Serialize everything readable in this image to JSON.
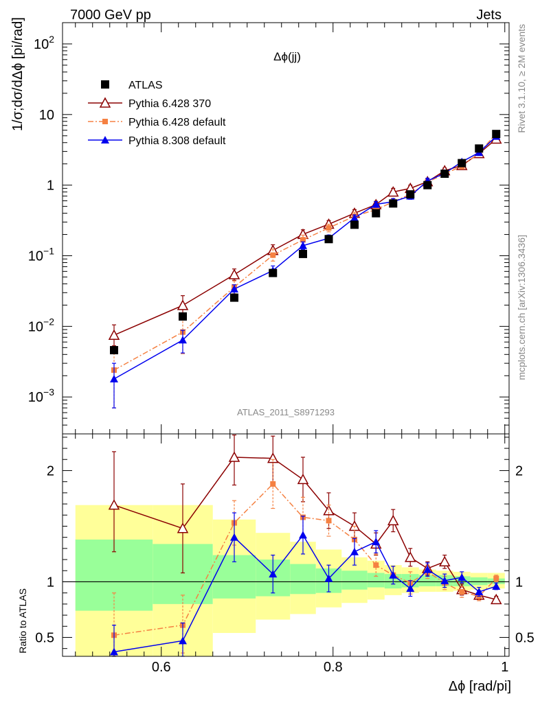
{
  "header": {
    "energy_label": "7000 GeV pp",
    "category_label": "Jets"
  },
  "side_labels": {
    "rivet": "Rivet 3.1.10, ≥ 2M events",
    "mcplots": "mcplots.cern.ch [arXiv:1306.3436]"
  },
  "analysis_id": "ATLAS_2011_S8971293",
  "chart_data": [
    {
      "type": "line",
      "panel": "main",
      "title": "Δϕ(jj)",
      "ylabel": "1/σ;dσ/dΔϕ [pi/rad]",
      "xlabel": "",
      "xlim": [
        0.485,
        1.005
      ],
      "ylim": [
        0.0003,
        200
      ],
      "yscale": "log",
      "yticks": [
        0.001,
        0.01,
        0.1,
        1,
        10,
        100
      ],
      "yticklabels": [
        "10⁻³",
        "10⁻²",
        "10⁻¹",
        "1",
        "10",
        "10²"
      ],
      "legend_position": "top-left",
      "x": [
        0.545,
        0.625,
        0.685,
        0.73,
        0.765,
        0.795,
        0.825,
        0.85,
        0.87,
        0.89,
        0.91,
        0.93,
        0.95,
        0.97,
        0.99
      ],
      "series": [
        {
          "name": "ATLAS",
          "style": "data",
          "color": "#000000",
          "values": [
            0.0046,
            0.0138,
            0.0255,
            0.057,
            0.106,
            0.172,
            0.275,
            0.4,
            0.55,
            0.74,
            1.0,
            1.45,
            2.05,
            3.3,
            5.3
          ]
        },
        {
          "name": "Pythia 6.428 370",
          "style": "open-triangle-solid",
          "color": "#8b0000",
          "values": [
            0.0075,
            0.0198,
            0.054,
            0.119,
            0.201,
            0.28,
            0.4,
            0.53,
            0.8,
            0.9,
            1.12,
            1.6,
            1.9,
            2.8,
            4.5
          ],
          "err_low": [
            0.0022,
            0.0054,
            0.009,
            0.02,
            0.028,
            0.03,
            0.04,
            0.05,
            0.08,
            0.09,
            0.1,
            0.15,
            0.15,
            0.2,
            0.3
          ],
          "err_high": [
            0.003,
            0.0074,
            0.011,
            0.024,
            0.032,
            0.035,
            0.05,
            0.06,
            0.1,
            0.1,
            0.12,
            0.15,
            0.15,
            0.2,
            0.3
          ]
        },
        {
          "name": "Pythia 6.428 default",
          "style": "square-dashdot",
          "color": "#f58142",
          "values": [
            0.0024,
            0.0083,
            0.036,
            0.102,
            0.168,
            0.248,
            0.363,
            0.45,
            0.578,
            0.742,
            1.1,
            1.45,
            1.85,
            2.83,
            5.4
          ],
          "err_low": [
            0.0017,
            0.0042,
            0.007,
            0.018,
            0.025,
            0.03,
            0.045,
            0.05,
            0.06,
            0.08,
            0.1,
            0.12,
            0.15,
            0.2,
            0.3
          ],
          "err_high": [
            0.0023,
            0.005,
            0.008,
            0.022,
            0.028,
            0.032,
            0.05,
            0.06,
            0.07,
            0.08,
            0.1,
            0.12,
            0.15,
            0.2,
            0.3
          ]
        },
        {
          "name": "Pythia 8.308 default",
          "style": "triangle-solid",
          "color": "#0000ee",
          "values": [
            0.0018,
            0.0064,
            0.0338,
            0.0617,
            0.139,
            0.177,
            0.343,
            0.535,
            0.583,
            0.7,
            1.15,
            1.47,
            2.14,
            2.9,
            4.9
          ],
          "err_low": [
            0.0011,
            0.0022,
            0.005,
            0.009,
            0.016,
            0.02,
            0.035,
            0.05,
            0.06,
            0.07,
            0.1,
            0.12,
            0.15,
            0.2,
            0.3
          ],
          "err_high": [
            0.0012,
            0.0024,
            0.005,
            0.01,
            0.018,
            0.02,
            0.035,
            0.05,
            0.06,
            0.07,
            0.1,
            0.12,
            0.15,
            0.2,
            0.3
          ]
        }
      ]
    },
    {
      "type": "line",
      "panel": "ratio",
      "ylabel": "Ratio to ATLAS",
      "xlabel": "Δϕ [rad/pi]",
      "xlim": [
        0.485,
        1.005
      ],
      "ylim": [
        0.33,
        2.33
      ],
      "xticks": [
        0.6,
        0.8,
        1
      ],
      "xticklabels": [
        "0.6",
        "0.8",
        "1"
      ],
      "yticks": [
        0.5,
        1,
        2
      ],
      "yticklabels": [
        "0.5",
        "1",
        "2"
      ],
      "reference_line": 1,
      "bands": {
        "edges": [
          0.5,
          0.59,
          0.66,
          0.71,
          0.75,
          0.78,
          0.81,
          0.84,
          0.86,
          0.88,
          0.9,
          0.92,
          0.94,
          0.96,
          0.98,
          1.0
        ],
        "stat_low": [
          0.74,
          0.8,
          0.85,
          0.87,
          0.89,
          0.9,
          0.93,
          0.95,
          0.94,
          0.95,
          0.96,
          0.96,
          0.96,
          0.97,
          0.98
        ],
        "stat_high": [
          1.38,
          1.34,
          1.24,
          1.2,
          1.16,
          1.12,
          1.1,
          1.08,
          1.07,
          1.07,
          1.06,
          1.06,
          1.05,
          1.04,
          1.03
        ],
        "total_low": [
          0.33,
          0.33,
          0.54,
          0.66,
          0.71,
          0.77,
          0.81,
          0.84,
          0.88,
          0.9,
          0.91,
          0.91,
          0.92,
          0.93,
          0.94
        ],
        "total_high": [
          1.69,
          1.69,
          1.56,
          1.44,
          1.36,
          1.29,
          1.22,
          1.19,
          1.15,
          1.13,
          1.11,
          1.1,
          1.09,
          1.08,
          1.08
        ],
        "stat_color": "#99ff99",
        "total_color": "#ffff99"
      },
      "x": [
        0.545,
        0.625,
        0.685,
        0.73,
        0.765,
        0.795,
        0.825,
        0.85,
        0.87,
        0.89,
        0.91,
        0.93,
        0.95,
        0.97,
        0.99
      ],
      "series": [
        {
          "name": "Pythia 6.428 370",
          "color": "#8b0000",
          "values": [
            1.69,
            1.48,
            2.12,
            2.11,
            1.92,
            1.64,
            1.5,
            1.34,
            1.55,
            1.22,
            1.12,
            1.18,
            0.93,
            0.88,
            0.84
          ],
          "err_low": [
            0.42,
            0.4,
            0.25,
            0.25,
            0.2,
            0.16,
            0.12,
            0.1,
            0.1,
            0.08,
            0.06,
            0.06,
            0.05,
            0.04,
            0.03
          ],
          "err_high": [
            0.48,
            0.4,
            0.2,
            0.2,
            0.2,
            0.16,
            0.12,
            0.1,
            0.1,
            0.08,
            0.06,
            0.06,
            0.05,
            0.04,
            0.03
          ]
        },
        {
          "name": "Pythia 6.428 default",
          "color": "#f58142",
          "values": [
            0.52,
            0.61,
            1.53,
            1.88,
            1.58,
            1.55,
            1.38,
            1.15,
            1.06,
            0.99,
            1.09,
            0.99,
            0.91,
            0.87,
            1.03
          ],
          "err_low": [
            0.33,
            0.25,
            0.2,
            0.22,
            0.18,
            0.14,
            0.12,
            0.1,
            0.08,
            0.1,
            0.06,
            0.06,
            0.05,
            0.04,
            0.03
          ],
          "err_high": [
            0.38,
            0.27,
            0.2,
            0.22,
            0.18,
            0.14,
            0.12,
            0.1,
            0.08,
            0.1,
            0.06,
            0.06,
            0.05,
            0.04,
            0.03
          ]
        },
        {
          "name": "Pythia 8.308 default",
          "color": "#0000ee",
          "values": [
            0.37,
            0.47,
            1.4,
            1.07,
            1.42,
            1.03,
            1.27,
            1.36,
            1.06,
            0.94,
            1.11,
            1.01,
            1.04,
            0.91,
            0.96
          ],
          "err_low": [
            0.24,
            0.16,
            0.22,
            0.17,
            0.17,
            0.12,
            0.12,
            0.1,
            0.08,
            0.07,
            0.06,
            0.06,
            0.05,
            0.04,
            0.03
          ],
          "err_high": [
            0.24,
            0.16,
            0.22,
            0.17,
            0.17,
            0.12,
            0.12,
            0.1,
            0.08,
            0.07,
            0.06,
            0.06,
            0.05,
            0.04,
            0.03
          ]
        }
      ]
    }
  ]
}
